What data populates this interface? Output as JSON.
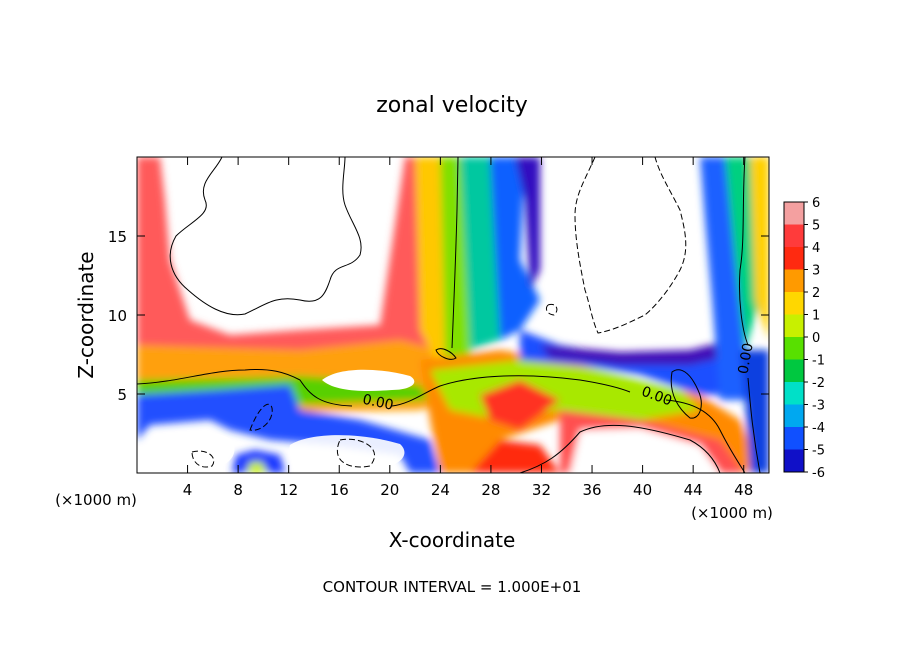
{
  "chart_data": {
    "type": "heatmap",
    "title": "zonal velocity",
    "xlabel": "X-coordinate",
    "ylabel": "Z-coordinate",
    "x_unit_left": "(×1000 m)",
    "x_unit_right": "(×1000 m)",
    "footer": "CONTOUR INTERVAL = 1.000E+01",
    "xlim": [
      0,
      50
    ],
    "ylim": [
      0,
      20
    ],
    "x_ticks": [
      4,
      8,
      12,
      16,
      20,
      24,
      28,
      32,
      36,
      40,
      44,
      48
    ],
    "y_ticks": [
      5,
      10,
      15
    ],
    "colorbar": {
      "levels": [
        6,
        5,
        4,
        3,
        2,
        1,
        0,
        -1,
        -2,
        -3,
        -4,
        -5,
        -6
      ],
      "colors": [
        "#f4a0a0",
        "#ff3b3b",
        "#ff2a10",
        "#ff9a00",
        "#ffd700",
        "#c8f000",
        "#58e000",
        "#00c840",
        "#00e0c8",
        "#00a8f0",
        "#1050ff",
        "#1010c8",
        "#7a00b0"
      ]
    },
    "contour_labels": [
      {
        "text": "0.00",
        "x": 19,
        "z": 4.2
      },
      {
        "text": "0.00",
        "x": 41,
        "z": 4.6
      },
      {
        "text": "0.00",
        "x": 48.5,
        "z": 7.2
      }
    ]
  }
}
